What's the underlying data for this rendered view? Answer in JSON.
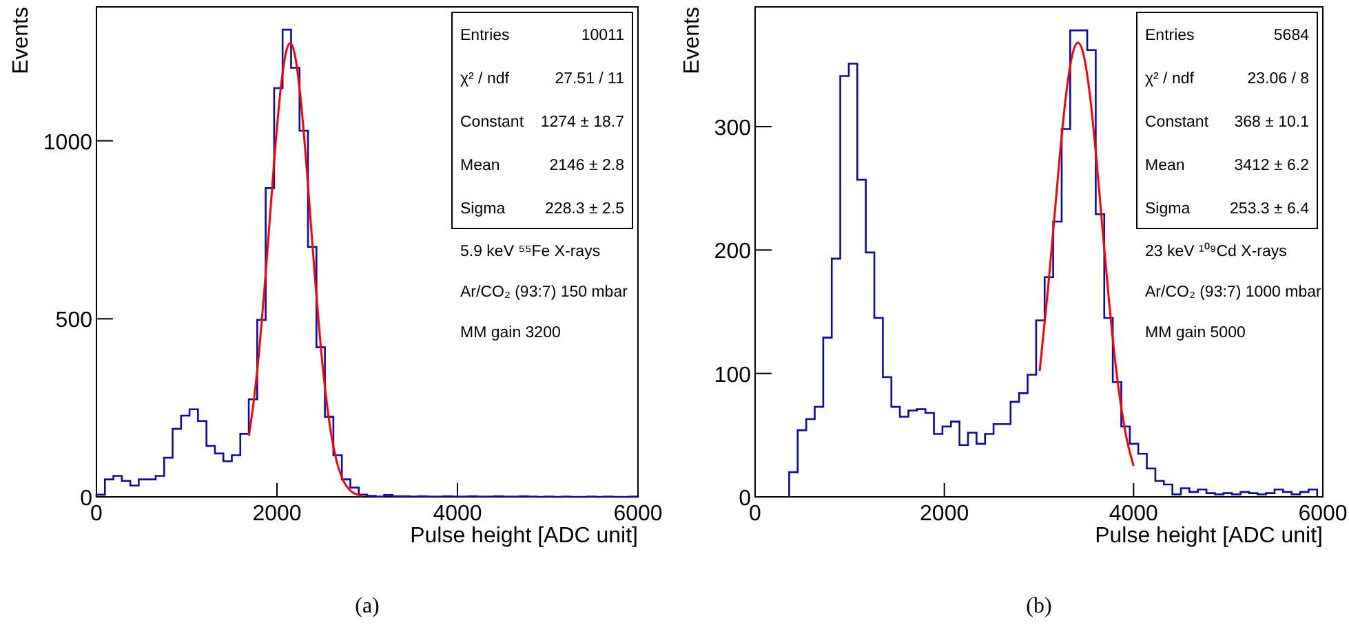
{
  "chart_data": [
    {
      "type": "histogram",
      "xlabel": "Pulse height [ADC unit]",
      "ylabel": "Events",
      "xlim": [
        0,
        6000
      ],
      "xticks": [
        0,
        2000,
        4000,
        6000
      ],
      "ylim": [
        0,
        1376
      ],
      "yticks": [
        0,
        500,
        1000
      ],
      "annotations": [
        "Entries",
        "10011",
        "χ² / ndf",
        "27.51 / 11",
        "Constant",
        "1274 ± 18.7",
        "Mean",
        "2146 ± 2.8",
        "Sigma",
        "228.3 ± 2.5",
        "5.9 keV ⁵⁵Fe X-rays",
        "Ar/CO₂ (93:7) 150 mbar",
        "MM gain 3200",
        "(a)"
      ],
      "series": [
        {
          "type": "histogram",
          "color": "#0a0aa8",
          "bins": [
            0,
            93.75,
            187.5,
            281.25,
            375,
            468.75,
            562.5,
            656.25,
            750,
            843.75,
            937.5,
            1031.25,
            1125,
            1218.75,
            1312.5,
            1406.25,
            1500,
            1593.75,
            1687.5,
            1781.25,
            1875,
            1968.75,
            2062.5,
            2156.25,
            2250,
            2343.75,
            2437.5,
            2531.25,
            2625,
            2718.75,
            2812.5,
            2906.25,
            3000,
            3093.75,
            3187.5,
            3281.25,
            3375,
            3468.75,
            3562.5,
            3656.25,
            3750,
            3843.75,
            3937.5,
            4031.25,
            4125,
            4218.75,
            4312.5,
            4406.25,
            4500,
            4593.75,
            4687.5,
            4781.25,
            4875,
            4968.75,
            5062.5,
            5156.25,
            5250,
            5343.75,
            5437.5,
            5531.25,
            5625,
            5718.75,
            5812.5,
            5906.25,
            6000
          ],
          "values": [
            6,
            49,
            59,
            45,
            32,
            49,
            49,
            59,
            110,
            191,
            228,
            246,
            213,
            143,
            122,
            100,
            117,
            177,
            274,
            497,
            867,
            1148,
            1312,
            1205,
            1028,
            702,
            420,
            225,
            117,
            49,
            26,
            6,
            3,
            1,
            5,
            2,
            2,
            1,
            2,
            1,
            1,
            2,
            1,
            1,
            2,
            1,
            1,
            2,
            1,
            1,
            2,
            1,
            0,
            1,
            0,
            1,
            0,
            0,
            1,
            0,
            1,
            0,
            0,
            1
          ]
        },
        {
          "type": "line",
          "color": "#ff0000",
          "x": [
            1689,
            1746,
            1804,
            1861,
            1918,
            1975,
            2032,
            2089,
            2146,
            2203,
            2260,
            2317,
            2374,
            2431,
            2488,
            2546,
            2603,
            2660,
            2717,
            2831,
            2945
          ],
          "values": [
            172,
            276,
            414,
            583,
            772,
            962,
            1124,
            1235,
            1274,
            1235,
            1124,
            962,
            772,
            583,
            414,
            276,
            172,
            101,
            56,
            14,
            3
          ]
        }
      ]
    },
    {
      "type": "histogram",
      "xlabel": "Pulse height [ADC unit]",
      "ylabel": "Events",
      "xlim": [
        0,
        6000
      ],
      "xticks": [
        0,
        2000,
        4000,
        6000
      ],
      "ylim": [
        0,
        397
      ],
      "yticks": [
        0,
        100,
        200,
        300
      ],
      "annotations": [
        "Entries",
        "5684",
        "χ² / ndf",
        "23.06 / 8",
        "Constant",
        "368 ± 10.1",
        "Mean",
        "3412 ± 6.2",
        "Sigma",
        "253.3 ± 6.4",
        "23 keV ¹⁰⁹Cd X-rays",
        "Ar/CO₂ (93:7) 1000 mbar",
        "MM gain 5000",
        "(b)"
      ],
      "series": [
        {
          "type": "histogram",
          "color": "#0a0aa8",
          "bins": [
            360,
            450,
            540,
            630,
            720,
            810,
            900,
            990,
            1080,
            1170,
            1260,
            1350,
            1440,
            1530,
            1620,
            1710,
            1800,
            1890,
            1980,
            2070,
            2160,
            2250,
            2340,
            2430,
            2520,
            2610,
            2700,
            2790,
            2880,
            2970,
            3060,
            3150,
            3240,
            3330,
            3420,
            3510,
            3600,
            3690,
            3780,
            3870,
            3960,
            4050,
            4140,
            4230,
            4320,
            4410,
            4500,
            4590,
            4680,
            4770,
            4860,
            4950,
            5040,
            5130,
            5220,
            5310,
            5400,
            5490,
            5580,
            5670,
            5760,
            5850,
            5940
          ],
          "values": [
            20,
            54,
            63,
            73,
            129,
            193,
            341,
            351,
            257,
            198,
            145,
            97,
            73,
            65,
            70,
            71,
            68,
            51,
            57,
            61,
            42,
            52,
            43,
            51,
            59,
            59,
            77,
            84,
            99,
            143,
            178,
            223,
            298,
            378,
            378,
            362,
            229,
            145,
            93,
            57,
            43,
            35,
            23,
            13,
            10,
            2,
            7,
            4,
            6,
            3,
            2,
            3,
            2,
            4,
            3,
            2,
            3,
            6,
            4,
            2,
            4,
            6
          ]
        },
        {
          "type": "line",
          "color": "#ff0000",
          "x": [
            3007,
            3095,
            3159,
            3222,
            3285,
            3349,
            3412,
            3475,
            3539,
            3602,
            3665,
            3729,
            3792,
            3855,
            3919,
            4000
          ],
          "values": [
            102,
            168,
            223,
            278,
            325,
            357,
            368,
            357,
            325,
            278,
            223,
            168,
            119,
            80,
            50,
            25
          ]
        }
      ]
    }
  ]
}
